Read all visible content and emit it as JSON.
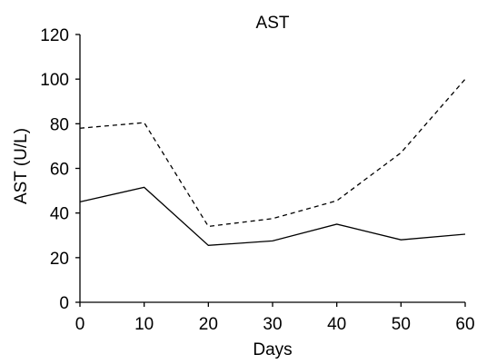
{
  "chart_data": {
    "type": "line",
    "title": "AST",
    "xlabel": "Days",
    "ylabel": "AST (U/L)",
    "xlim": [
      0,
      60
    ],
    "ylim": [
      0,
      120
    ],
    "x_ticks": [
      "0",
      "10",
      "20",
      "30",
      "40",
      "50",
      "60"
    ],
    "y_ticks": [
      "0",
      "20",
      "40",
      "60",
      "80",
      "100",
      "120"
    ],
    "grid": false,
    "x": [
      0,
      10,
      20,
      30,
      40,
      50,
      60
    ],
    "series": [
      {
        "style": "dashed",
        "color": "#000000",
        "values": [
          78,
          80.5,
          34,
          37.5,
          45.5,
          67,
          100
        ]
      },
      {
        "style": "solid",
        "color": "#000000",
        "values": [
          45,
          51.5,
          25.5,
          27.5,
          35,
          28,
          30.5
        ]
      }
    ]
  }
}
